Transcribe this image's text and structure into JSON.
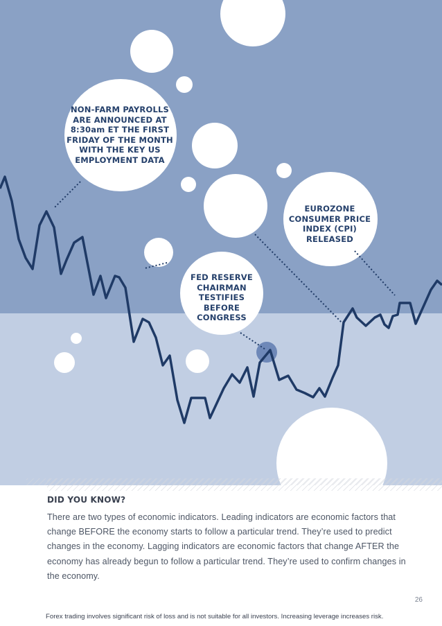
{
  "colors": {
    "upper_band": "#8aa1c5",
    "lower_band": "#c1cee3",
    "line": "#1f3a66",
    "bubble": "#ffffff",
    "highlight": "#6e88b8",
    "callout_text": "#25406b"
  },
  "callouts": {
    "nonfarm": "NON-FARM PAYROLLS ARE ANNOUNCED AT 8:30am ET THE FIRST FRIDAY OF THE MONTH WITH THE KEY US EMPLOYMENT DATA",
    "eurozone": "EUROZONE CONSUMER PRICE INDEX (CPI) RELEASED",
    "fed": "FED RESERVE CHAIRMAN TESTIFIES BEFORE CONGRESS"
  },
  "did_you_know": {
    "title": "DID YOU KNOW?",
    "body": "There are two types of economic indicators. Leading indicators are economic factors that change BEFORE the economy starts to follow a particular trend. They’re used to predict changes in the economy. Lagging indicators are economic factors that change AFTER the economy has already begun to follow a particular trend. They’re used to confirm changes in the economy."
  },
  "page_number": "26",
  "disclaimer": "Forex trading involves significant risk of loss and is not suitable for all investors. Increasing leverage increases risk."
}
